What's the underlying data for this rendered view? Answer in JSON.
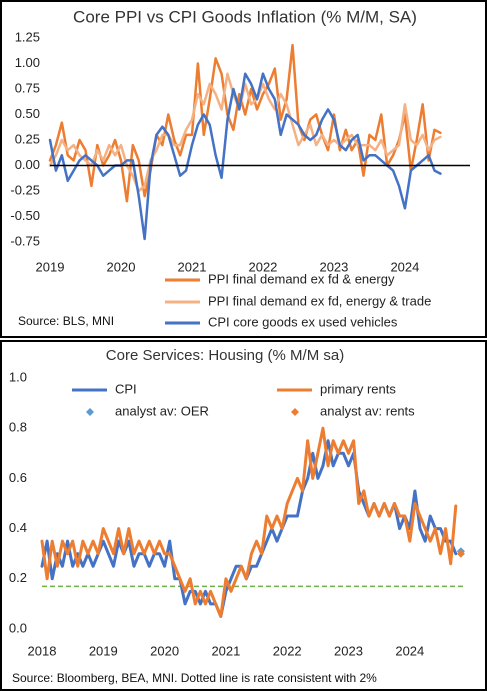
{
  "chart_data": [
    {
      "type": "line",
      "title": "Core PPI vs CPI Goods Inflation (% M/M, SA)",
      "categories": [
        "2019",
        null,
        null,
        null,
        null,
        null,
        null,
        null,
        null,
        null,
        null,
        null,
        "2020",
        null,
        null,
        null,
        null,
        null,
        null,
        null,
        null,
        null,
        null,
        null,
        "2021",
        null,
        null,
        null,
        null,
        null,
        null,
        null,
        null,
        null,
        null,
        null,
        "2022",
        null,
        null,
        null,
        null,
        null,
        null,
        null,
        null,
        null,
        null,
        null,
        "2023",
        null,
        null,
        null,
        null,
        null,
        null,
        null,
        null,
        null,
        null,
        null,
        "2024",
        null,
        null,
        null,
        null,
        null,
        null,
        null,
        null,
        null,
        null,
        null
      ],
      "series": [
        {
          "name": "PPI final demand ex fd & energy",
          "color": "#ed7d31",
          "mode": "line",
          "values": [
            0.05,
            0.2,
            0.42,
            0.1,
            0.05,
            0.25,
            0.15,
            -0.2,
            0.2,
            0.0,
            0.1,
            0.25,
            0.05,
            -0.35,
            0.2,
            0.05,
            -0.3,
            -0.05,
            0.3,
            0.2,
            0.5,
            0.25,
            0.1,
            0.3,
            0.3,
            1.0,
            0.3,
            0.65,
            1.05,
            0.9,
            0.5,
            0.35,
            0.7,
            0.5,
            0.75,
            0.55,
            0.7,
            0.8,
            0.95,
            0.45,
            0.65,
            1.18,
            0.4,
            0.25,
            0.45,
            0.5,
            0.3,
            0.15,
            0.5,
            0.15,
            0.35,
            0.15,
            0.25,
            -0.1,
            0.3,
            0.25,
            0.5,
            0.0,
            0.1,
            0.25,
            0.5,
            -0.05,
            0.25,
            0.6,
            0.05,
            0.35,
            0.32,
            null,
            null,
            null,
            null,
            null
          ]
        },
        {
          "name": "PPI final demand ex fd, energy & trade",
          "color": "#f4b183",
          "mode": "line",
          "values": [
            0.0,
            0.1,
            0.25,
            0.15,
            0.2,
            0.1,
            0.05,
            0.0,
            0.15,
            0.05,
            0.2,
            0.1,
            0.2,
            0.0,
            -0.1,
            -0.25,
            -0.2,
            0.05,
            0.15,
            0.3,
            0.3,
            0.2,
            0.2,
            0.35,
            0.45,
            0.7,
            0.6,
            0.8,
            0.7,
            0.55,
            0.9,
            0.7,
            0.55,
            0.8,
            0.6,
            0.65,
            0.8,
            0.65,
            0.55,
            0.7,
            0.6,
            0.4,
            0.2,
            0.3,
            0.4,
            0.2,
            0.3,
            0.2,
            0.25,
            0.2,
            0.25,
            0.3,
            0.2,
            0.2,
            0.2,
            0.15,
            0.25,
            0.1,
            0.15,
            0.2,
            0.6,
            0.25,
            0.2,
            0.3,
            0.15,
            0.25,
            0.28,
            null,
            null,
            null,
            null,
            null
          ]
        },
        {
          "name": "CPI core goods ex used vehicles",
          "color": "#4472c4",
          "mode": "line",
          "values": [
            0.25,
            -0.05,
            0.1,
            -0.15,
            -0.05,
            0.05,
            0.1,
            0.05,
            0.0,
            -0.1,
            -0.05,
            0.0,
            0.0,
            0.05,
            0.05,
            -0.3,
            -0.72,
            0.0,
            0.3,
            0.38,
            0.3,
            0.1,
            -0.1,
            -0.05,
            0.2,
            0.4,
            0.5,
            0.4,
            0.1,
            -0.12,
            0.45,
            0.75,
            0.55,
            0.9,
            0.8,
            0.65,
            0.9,
            0.75,
            0.65,
            0.3,
            0.5,
            0.45,
            0.4,
            0.3,
            0.25,
            0.3,
            0.45,
            0.55,
            0.45,
            0.2,
            0.15,
            0.25,
            0.3,
            0.05,
            0.1,
            0.1,
            0.05,
            0.0,
            -0.05,
            -0.2,
            -0.42,
            -0.05,
            0.0,
            0.05,
            0.1,
            -0.05,
            -0.08,
            null,
            null,
            null,
            null,
            null
          ]
        }
      ],
      "ylim": [
        -0.75,
        1.25
      ],
      "yticks": [
        1.25,
        {
          "value": 1.0,
          "label": "1.00"
        },
        0.75,
        {
          "value": 0.5,
          "label": "0.50"
        },
        0.25,
        {
          "value": 0,
          "label": "0.00"
        },
        -0.25,
        {
          "value": -0.5,
          "label": "-0.50"
        },
        -0.75
      ],
      "grid": false,
      "zero_line": true,
      "legend": "bottom-right",
      "source": "Source: BLS, MNI"
    },
    {
      "type": "line",
      "title": "Core Services: Housing (% M/M sa)",
      "categories": [
        "2018",
        null,
        null,
        null,
        null,
        null,
        null,
        null,
        null,
        null,
        null,
        null,
        "2019",
        null,
        null,
        null,
        null,
        null,
        null,
        null,
        null,
        null,
        null,
        null,
        "2020",
        null,
        null,
        null,
        null,
        null,
        null,
        null,
        null,
        null,
        null,
        null,
        "2021",
        null,
        null,
        null,
        null,
        null,
        null,
        null,
        null,
        null,
        null,
        null,
        "2022",
        null,
        null,
        null,
        null,
        null,
        null,
        null,
        null,
        null,
        null,
        null,
        "2023",
        null,
        null,
        null,
        null,
        null,
        null,
        null,
        null,
        null,
        null,
        null,
        "2024",
        null,
        null,
        null,
        null,
        null,
        null,
        null,
        null,
        null,
        null,
        null
      ],
      "series": [
        {
          "name": "CPI",
          "color": "#4472c4",
          "mode": "line",
          "values": [
            0.25,
            0.35,
            0.2,
            0.3,
            0.25,
            0.35,
            0.25,
            0.3,
            0.25,
            0.3,
            0.25,
            0.3,
            0.35,
            0.3,
            0.25,
            0.35,
            0.3,
            0.35,
            0.25,
            0.3,
            0.3,
            0.25,
            0.3,
            0.3,
            0.25,
            0.35,
            0.2,
            0.2,
            0.1,
            0.15,
            0.15,
            0.1,
            0.15,
            0.1,
            0.1,
            0.05,
            0.15,
            0.2,
            0.25,
            0.25,
            0.2,
            0.25,
            0.25,
            0.3,
            0.35,
            0.4,
            0.35,
            0.4,
            0.45,
            0.45,
            0.45,
            0.55,
            0.6,
            0.7,
            0.6,
            0.65,
            0.75,
            0.65,
            0.7,
            0.7,
            0.65,
            0.7,
            0.55,
            0.5,
            0.45,
            0.5,
            0.45,
            0.5,
            0.45,
            0.5,
            0.4,
            0.45,
            0.4,
            0.55,
            0.4,
            0.35,
            0.45,
            0.4,
            0.4,
            0.35,
            0.35,
            0.3,
            null,
            null
          ]
        },
        {
          "name": "primary rents",
          "color": "#ed7d31",
          "mode": "line",
          "values": [
            0.35,
            0.2,
            0.35,
            0.25,
            0.35,
            0.3,
            0.35,
            0.25,
            0.35,
            0.3,
            0.35,
            0.3,
            0.4,
            0.35,
            0.3,
            0.4,
            0.3,
            0.4,
            0.3,
            0.35,
            0.3,
            0.35,
            0.3,
            0.35,
            0.3,
            0.3,
            0.25,
            0.2,
            0.15,
            0.2,
            0.1,
            0.15,
            0.1,
            0.15,
            0.1,
            0.05,
            0.2,
            0.15,
            0.2,
            0.25,
            0.2,
            0.3,
            0.35,
            0.3,
            0.45,
            0.4,
            0.45,
            0.4,
            0.5,
            0.55,
            0.6,
            0.55,
            0.75,
            0.6,
            0.7,
            0.8,
            0.65,
            0.75,
            0.7,
            0.75,
            0.7,
            0.75,
            0.5,
            0.55,
            0.45,
            0.5,
            0.45,
            0.5,
            0.45,
            0.5,
            0.45,
            0.45,
            0.35,
            0.5,
            0.45,
            0.4,
            0.35,
            0.4,
            0.3,
            0.4,
            0.26,
            0.49,
            null,
            null
          ]
        },
        {
          "name": "analyst av: OER",
          "color": "#5b9bd5",
          "mode": "marker",
          "values": [
            null,
            null,
            null,
            null,
            null,
            null,
            null,
            null,
            null,
            null,
            null,
            null,
            null,
            null,
            null,
            null,
            null,
            null,
            null,
            null,
            null,
            null,
            null,
            null,
            null,
            null,
            null,
            null,
            null,
            null,
            null,
            null,
            null,
            null,
            null,
            null,
            null,
            null,
            null,
            null,
            null,
            null,
            null,
            null,
            null,
            null,
            null,
            null,
            null,
            null,
            null,
            null,
            null,
            null,
            null,
            null,
            null,
            null,
            null,
            null,
            null,
            null,
            null,
            null,
            null,
            null,
            null,
            null,
            null,
            null,
            null,
            null,
            null,
            null,
            null,
            null,
            null,
            null,
            null,
            null,
            null,
            null,
            0.31,
            null
          ]
        },
        {
          "name": "analyst av: rents",
          "color": "#ed7d31",
          "mode": "marker",
          "values": [
            null,
            null,
            null,
            null,
            null,
            null,
            null,
            null,
            null,
            null,
            null,
            null,
            null,
            null,
            null,
            null,
            null,
            null,
            null,
            null,
            null,
            null,
            null,
            null,
            null,
            null,
            null,
            null,
            null,
            null,
            null,
            null,
            null,
            null,
            null,
            null,
            null,
            null,
            null,
            null,
            null,
            null,
            null,
            null,
            null,
            null,
            null,
            null,
            null,
            null,
            null,
            null,
            null,
            null,
            null,
            null,
            null,
            null,
            null,
            null,
            null,
            null,
            null,
            null,
            null,
            null,
            null,
            null,
            null,
            null,
            null,
            null,
            null,
            null,
            null,
            null,
            null,
            null,
            null,
            null,
            null,
            null,
            0.3,
            null
          ]
        }
      ],
      "ylim": [
        0,
        1
      ],
      "yticks": [
        {
          "value": 1,
          "label": "1.0"
        },
        0.8,
        0.6,
        0.4,
        0.2,
        {
          "value": 0,
          "label": "0.0"
        }
      ],
      "grid": false,
      "zero_line": false,
      "legend": "top",
      "reference_line": {
        "value": 0.17,
        "color": "#70ad47"
      },
      "source": "Source: Bloomberg, BEA, MNI. Dotted line is rate consistent with 2%"
    }
  ]
}
